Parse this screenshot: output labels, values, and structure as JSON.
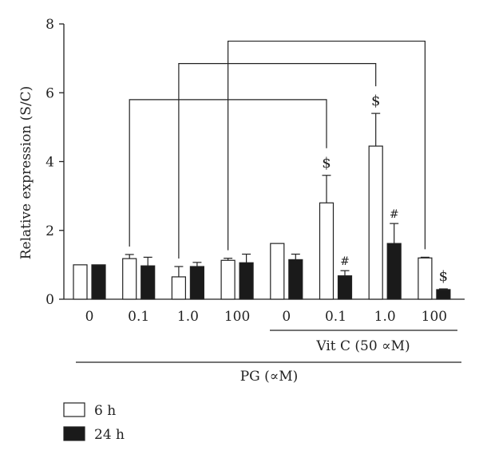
{
  "chart_data": {
    "type": "bar",
    "ylabel": "Relative expression (S/C)",
    "ylim": [
      0,
      8
    ],
    "yticks": [
      "0",
      "2",
      "4",
      "6",
      "8"
    ],
    "categories": [
      "0",
      "0.1",
      "1.0",
      "100",
      "0",
      "0.1",
      "1.0",
      "100"
    ],
    "series": [
      {
        "name": "6 h",
        "color": "#ffffff",
        "values": [
          1.0,
          1.18,
          0.65,
          1.13,
          1.62,
          2.8,
          4.45,
          1.2
        ],
        "errors": [
          0.0,
          0.12,
          0.3,
          0.06,
          0.0,
          0.8,
          0.95,
          0.02
        ],
        "marks": [
          "",
          "",
          "",
          "",
          "",
          "$",
          "$",
          ""
        ]
      },
      {
        "name": "24 h",
        "color": "#1a1a1a",
        "values": [
          1.0,
          0.97,
          0.95,
          1.06,
          1.15,
          0.68,
          1.62,
          0.28
        ],
        "errors": [
          0.0,
          0.25,
          0.12,
          0.25,
          0.16,
          0.15,
          0.58,
          0.02
        ],
        "marks": [
          "",
          "",
          "",
          "",
          "",
          "#",
          "#",
          "$"
        ]
      }
    ],
    "group_labels": {
      "vitc": "Vit C (50 ∝M)",
      "pg": "PG (∝M)"
    },
    "brackets": [
      {
        "from_category": 1,
        "to_category": 5,
        "level": 5.8
      },
      {
        "from_category": 2,
        "to_category": 6,
        "level": 6.85
      },
      {
        "from_category": 3,
        "to_category": 7,
        "level": 7.5
      }
    ],
    "legend_placement": "bottom-left",
    "grid": false
  }
}
